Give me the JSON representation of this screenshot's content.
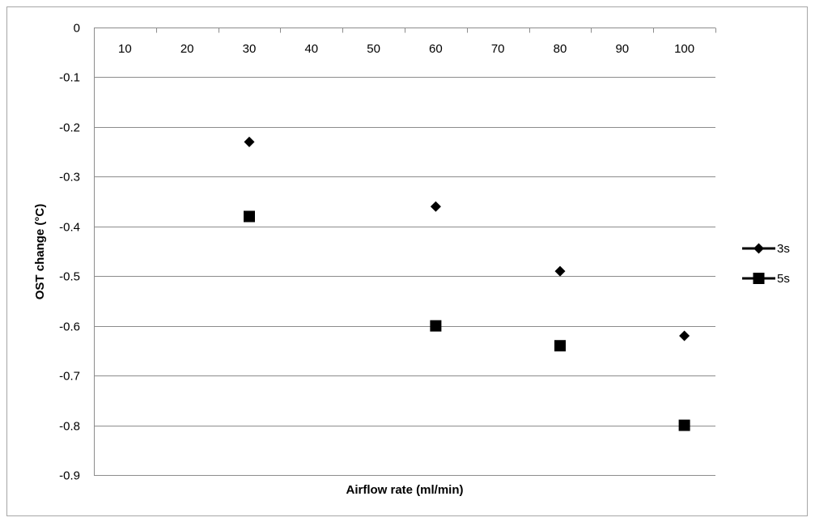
{
  "chart_data": {
    "type": "scatter",
    "title": "",
    "xlabel": "Airflow rate (ml/min)",
    "ylabel": "OST change (°C)",
    "categories": [
      "10",
      "20",
      "30",
      "40",
      "50",
      "60",
      "70",
      "80",
      "90",
      "100"
    ],
    "ylim": [
      -0.9,
      0
    ],
    "yticks": [
      0,
      -0.1,
      -0.2,
      -0.3,
      -0.4,
      -0.5,
      -0.6,
      -0.7,
      -0.8,
      -0.9
    ],
    "ytick_labels": [
      "0",
      "-0.1",
      "-0.2",
      "-0.3",
      "-0.4",
      "-0.5",
      "-0.6",
      "-0.7",
      "-0.8",
      "-0.9"
    ],
    "grid": true,
    "legend_position": "right",
    "series": [
      {
        "name": "3s",
        "marker": "diamond",
        "color": "#000000",
        "points": [
          {
            "x": "30",
            "y": -0.23
          },
          {
            "x": "60",
            "y": -0.36
          },
          {
            "x": "80",
            "y": -0.49
          },
          {
            "x": "100",
            "y": -0.62
          }
        ]
      },
      {
        "name": "5s",
        "marker": "square",
        "color": "#000000",
        "points": [
          {
            "x": "30",
            "y": -0.38
          },
          {
            "x": "60",
            "y": -0.6
          },
          {
            "x": "80",
            "y": -0.64
          },
          {
            "x": "100",
            "y": -0.8
          }
        ]
      }
    ]
  }
}
